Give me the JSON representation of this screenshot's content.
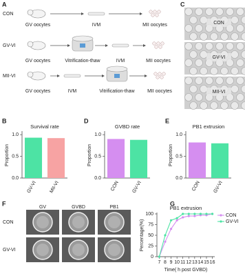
{
  "panel_labels": [
    "A",
    "B",
    "C",
    "D",
    "E",
    "F",
    "G"
  ],
  "diagram": {
    "rows": [
      {
        "group": "CON",
        "steps": [
          "GV oocytes",
          "IVM",
          "MII oocytes"
        ]
      },
      {
        "group": "GV-VI",
        "steps": [
          "GV oocytes",
          "Vitrification-thaw",
          "IVM",
          "MII oocytes"
        ]
      },
      {
        "group": "MII-VI",
        "steps": [
          "GV oocytes",
          "IVM",
          "Vitrification-thaw",
          "MII oocytes"
        ]
      }
    ]
  },
  "micrographs_c": [
    "CON",
    "GV-VI",
    "MII-VI"
  ],
  "micrographs_f": {
    "columns": [
      "GV",
      "GVBD",
      "PB1"
    ],
    "rows": [
      "CON",
      "GV-VI"
    ]
  },
  "chart_data": [
    {
      "type": "bar",
      "title": "Survival rate",
      "y_label": "Proportion",
      "categories": [
        "GV-VI",
        "MII-VI"
      ],
      "values": [
        0.93,
        0.92
      ],
      "colors": [
        "#4de3a4",
        "#f7a3a3"
      ],
      "ylim": [
        0,
        1.05
      ],
      "yticks": [
        {
          "value": 0,
          "label": "0.0"
        },
        0.5,
        {
          "value": 1,
          "label": "1.0"
        }
      ]
    },
    {
      "type": "bar",
      "title": "GVBD rate",
      "y_label": "Proportion",
      "categories": [
        "CON",
        "GV-VI"
      ],
      "values": [
        0.9,
        0.88
      ],
      "colors": [
        "#d58ef0",
        "#4de3a4"
      ],
      "ylim": [
        0,
        1.05
      ],
      "yticks": [
        {
          "value": 0,
          "label": "0.0"
        },
        0.5,
        {
          "value": 1,
          "label": "1.0"
        }
      ]
    },
    {
      "type": "bar",
      "title": "PB1 extrusion",
      "y_label": "Proportion",
      "categories": [
        "CON",
        "GV-VI"
      ],
      "values": [
        0.82,
        0.8
      ],
      "colors": [
        "#d58ef0",
        "#4de3a4"
      ],
      "ylim": [
        0,
        1.05
      ],
      "yticks": [
        {
          "value": 0,
          "label": "0.0"
        },
        0.5,
        {
          "value": 1,
          "label": "1.0"
        }
      ]
    },
    {
      "type": "line",
      "title": "PB1 extrusion",
      "x_label": "Time( h post GVBD)",
      "y_label": "Percentage(%)",
      "x": [
        7,
        8,
        9,
        10,
        11,
        12,
        13,
        14,
        15,
        16
      ],
      "series": [
        {
          "name": "CON",
          "color": "#d58ef0",
          "values": [
            0,
            35,
            65,
            85,
            92,
            95,
            95,
            97,
            97,
            100
          ]
        },
        {
          "name": "GV-VI",
          "color": "#4de3a4",
          "values": [
            0,
            50,
            85,
            90,
            100,
            100,
            100,
            100,
            100,
            100
          ]
        }
      ],
      "xlim": [
        6.6,
        16.4
      ],
      "ylim": [
        0,
        100
      ],
      "xticks": [
        7,
        8,
        9,
        10,
        11,
        12,
        13,
        14,
        15,
        16
      ],
      "yticks": [
        0,
        25,
        50,
        75,
        100
      ],
      "legend": "upper right"
    }
  ]
}
